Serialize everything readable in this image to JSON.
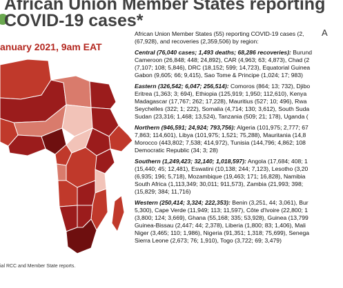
{
  "header": {
    "title_line1": "African Union Member States reporting",
    "title_line2": "COVID-19 cases*",
    "date": "anuary 2021, 9am EAT",
    "corner_glyph": "A"
  },
  "footnote": "ial RCC and Member State reports.",
  "summary": {
    "line1": "African Union Member States (55) reporting COVID-19 cases (2,",
    "line2": "(67,928), and recoveries (2,359,506) by region:"
  },
  "regions": [
    {
      "head": "Central (76,040 cases; 1,493 deaths; 68,286 recoveries):",
      "lines": [
        " Burund",
        "Cameroon (26,848; 448; 24,892), CAR (4,963; 63; 4,873), Chad (2",
        "(7,107; 108; 5,846), DRC (18,152; 599; 14,723), Equatorial Guinea",
        "Gabon (9,605; 66; 9,415), Sao Tome & Principe (1,024; 17; 983)"
      ]
    },
    {
      "head": "Eastern (326,542; 6,047; 256,514):",
      "lines": [
        " Comoros (864; 13; 732), Djibo",
        "Eritrea (1,363; 3; 694), Ethiopia (125,919; 1,950; 112,610), Kenya",
        "Madagascar (17,767; 262; 17,228), Mauritius (527; 10; 496), Rwa",
        "Seychelles (322; 1; 222), Somalia (4,714; 130; 3,612), South Suda",
        "Sudan (23,316; 1,468; 13,524), Tanzania (509; 21; 178), Uganda ("
      ]
    },
    {
      "head": "Northern (946,591; 24,924; 793,756):",
      "lines": [
        " Algeria (101,975; 2,777; 67",
        "7,863; 114,601), Libya (101,975; 1,521; 75,288), Mauritania (14,8",
        "Morocco (443,802; 7,538; 414,972), Tunisia (144,796; 4,862; 108",
        "Democratic Republic (34; 3; 28)"
      ]
    },
    {
      "head": "Southern (1,249,423; 32,140; 1,018,597):",
      "lines": [
        " Angola (17,684; 408; 1",
        "(15,440; 45; 12,481), Eswatini (10,138; 244; 7,123), Lesotho (3,20",
        "(6,935; 196; 5,718), Mozambique (19,463; 171; 16,828), Namibia",
        "South Africa (1,113,349; 30,011; 911,573), Zambia (21,993; 398;",
        "(15,829; 384; 11,716)"
      ]
    },
    {
      "head": "Western (250,414; 3,324; 222,353):",
      "lines": [
        " Benin (3,251, 44; 3,061), Bur",
        "5,300), Cape Verde (11,949; 113; 11,597), Côte d'Ivoire (22,800; 1",
        "(3,800; 124; 3,669), Ghana (55,168; 335; 53,928), Guinea (13,799",
        "Guinea-Bissau (2,447; 44; 2,378), Liberia (1,800; 83; 1,406), Mali",
        "Niger (3,465; 110; 1,986), Nigeria (91,351; 1,318; 75,699), Senega",
        "Sierra Leone (2,673; 76; 1,910), Togo (3,722; 69; 3,479)"
      ]
    }
  ],
  "map_colors": {
    "very_high": "#6e0f0f",
    "high": "#9b1c1c",
    "medium": "#c0392b",
    "low": "#d97b6c",
    "very_low": "#f2c3b8",
    "border": "#ffffff",
    "water": "#ffffff"
  }
}
